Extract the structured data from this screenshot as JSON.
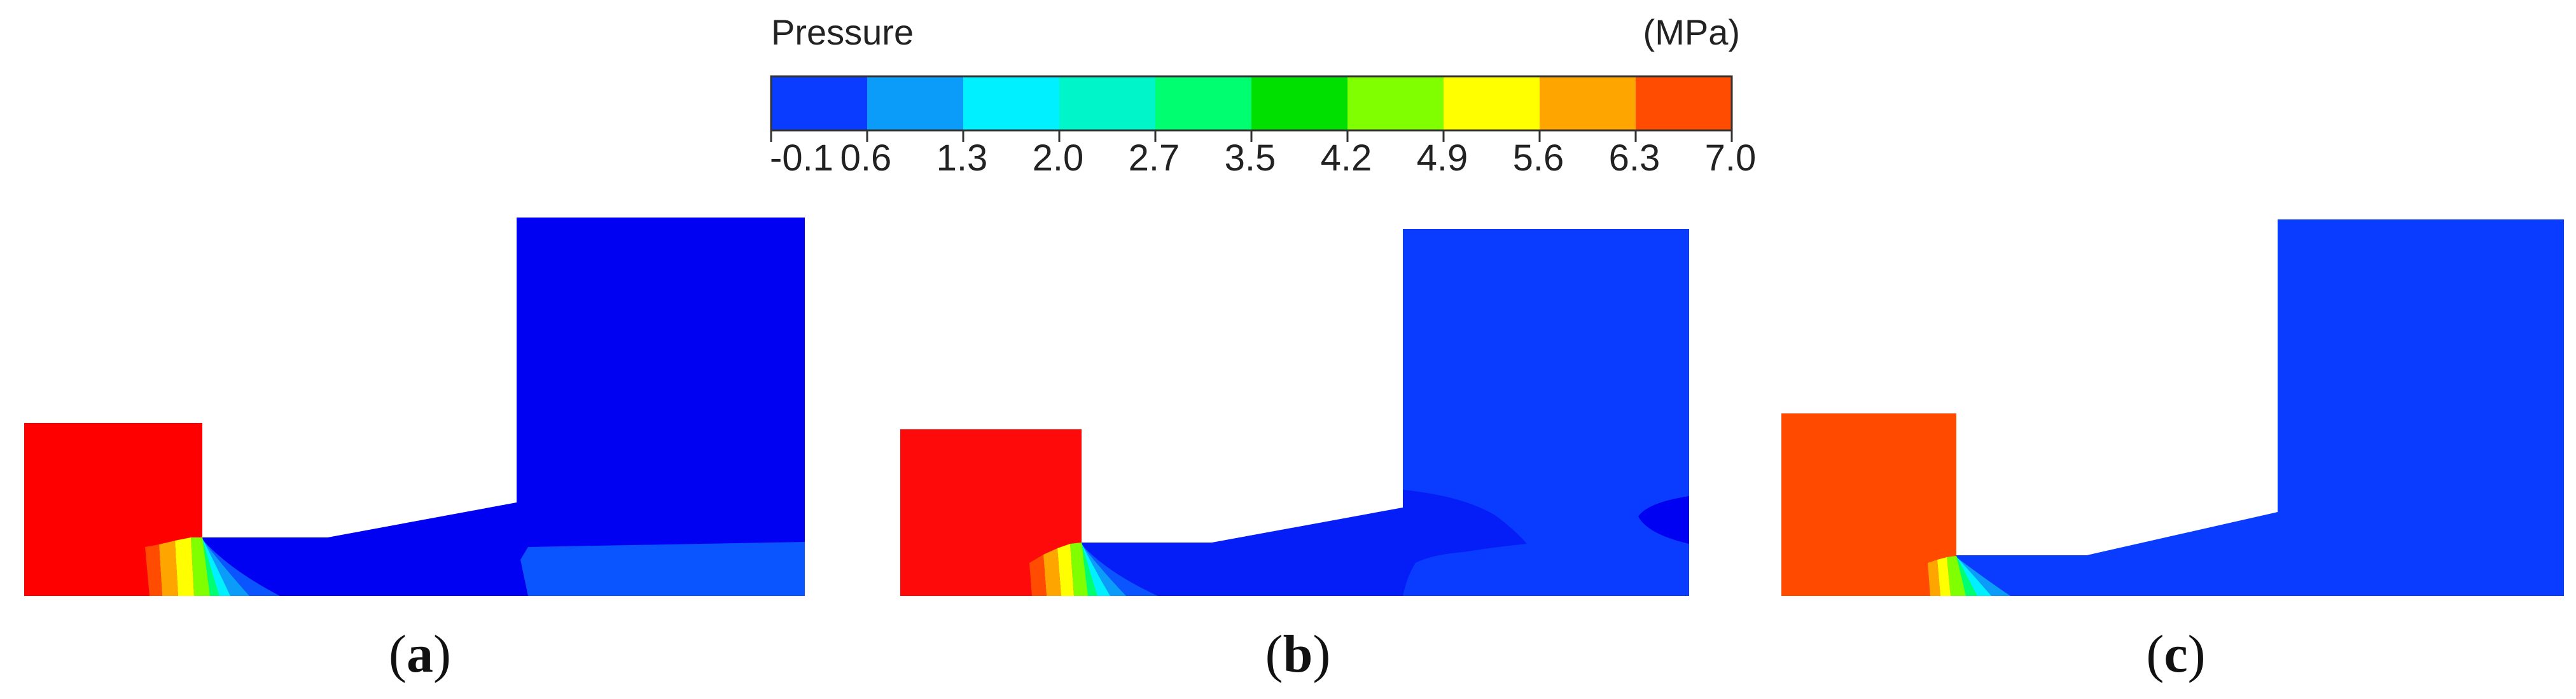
{
  "legend": {
    "title": "Pressure",
    "unit": "(MPa)",
    "ticks": [
      "-0.1",
      "0.6",
      "1.3",
      "2.0",
      "2.7",
      "3.5",
      "4.2",
      "4.9",
      "5.6",
      "6.3",
      "7.0"
    ],
    "bin_colors": [
      "#0a3cff",
      "#0a9cf8",
      "#00f0ff",
      "#00f5c8",
      "#00ff70",
      "#00e000",
      "#80ff00",
      "#ffff00",
      "#ffa500",
      "#ff4c00"
    ]
  },
  "colors": {
    "high_pressure_a": "#ff0000",
    "high_pressure_b": "#ff0a0a",
    "high_pressure_c": "#ff4a00",
    "low_pressure_deep": "#0000f2",
    "low_pressure": "#0a3cff",
    "low_pressure_light": "#0a55ff"
  },
  "panels": [
    {
      "id": "a",
      "label_open": "(",
      "label_letter": "a",
      "label_close": ")"
    },
    {
      "id": "b",
      "label_open": "(",
      "label_letter": "b",
      "label_close": ")"
    },
    {
      "id": "c",
      "label_open": "(",
      "label_letter": "c",
      "label_close": ")"
    }
  ]
}
